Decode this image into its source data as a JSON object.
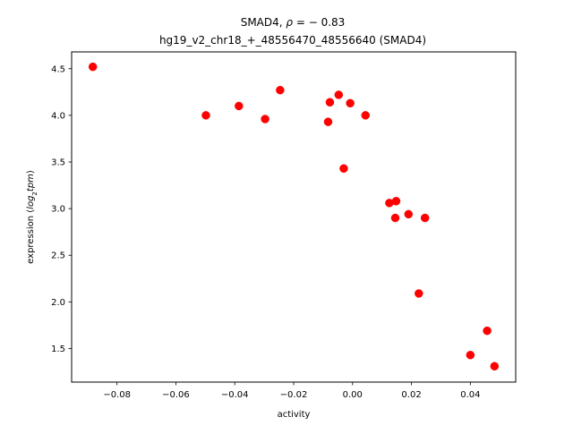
{
  "chart_data": {
    "type": "scatter",
    "title_line1_prefix": "SMAD4, ",
    "title_line1_rho": "ρ",
    "title_line1_suffix": " = − 0.83",
    "title_line2": "hg19_v2_chr18_+_48556470_48556640 (SMAD4)",
    "xlabel": "activity",
    "ylabel_prefix": "expression (",
    "ylabel_log": "log",
    "ylabel_sub": "2",
    "ylabel_tpm": "tpm",
    "ylabel_suffix": ")",
    "xlim": [
      -0.0954,
      0.0554
    ],
    "ylim": [
      1.14,
      4.68
    ],
    "xticks": [
      -0.08,
      -0.06,
      -0.04,
      -0.02,
      0.0,
      0.02,
      0.04
    ],
    "xtick_labels": [
      "−0.08",
      "−0.06",
      "−0.04",
      "−0.02",
      "0.00",
      "0.02",
      "0.04"
    ],
    "yticks": [
      1.5,
      2.0,
      2.5,
      3.0,
      3.5,
      4.0,
      4.5
    ],
    "ytick_labels": [
      "1.5",
      "2.0",
      "2.5",
      "3.0",
      "3.5",
      "4.0",
      "4.5"
    ],
    "marker_color": "#ff0000",
    "points": [
      {
        "x": -0.0882,
        "y": 4.52
      },
      {
        "x": -0.0498,
        "y": 4.0
      },
      {
        "x": -0.0386,
        "y": 4.1
      },
      {
        "x": -0.0297,
        "y": 3.96
      },
      {
        "x": -0.0246,
        "y": 4.27
      },
      {
        "x": -0.0083,
        "y": 3.93
      },
      {
        "x": -0.0077,
        "y": 4.14
      },
      {
        "x": -0.0047,
        "y": 4.22
      },
      {
        "x": -0.003,
        "y": 3.43
      },
      {
        "x": -0.0008,
        "y": 4.13
      },
      {
        "x": 0.0044,
        "y": 4.0
      },
      {
        "x": 0.0125,
        "y": 3.06
      },
      {
        "x": 0.0148,
        "y": 3.08
      },
      {
        "x": 0.0145,
        "y": 2.9
      },
      {
        "x": 0.019,
        "y": 2.94
      },
      {
        "x": 0.0246,
        "y": 2.9
      },
      {
        "x": 0.0225,
        "y": 2.09
      },
      {
        "x": 0.04,
        "y": 1.43
      },
      {
        "x": 0.0457,
        "y": 1.69
      },
      {
        "x": 0.0482,
        "y": 1.31
      }
    ]
  }
}
